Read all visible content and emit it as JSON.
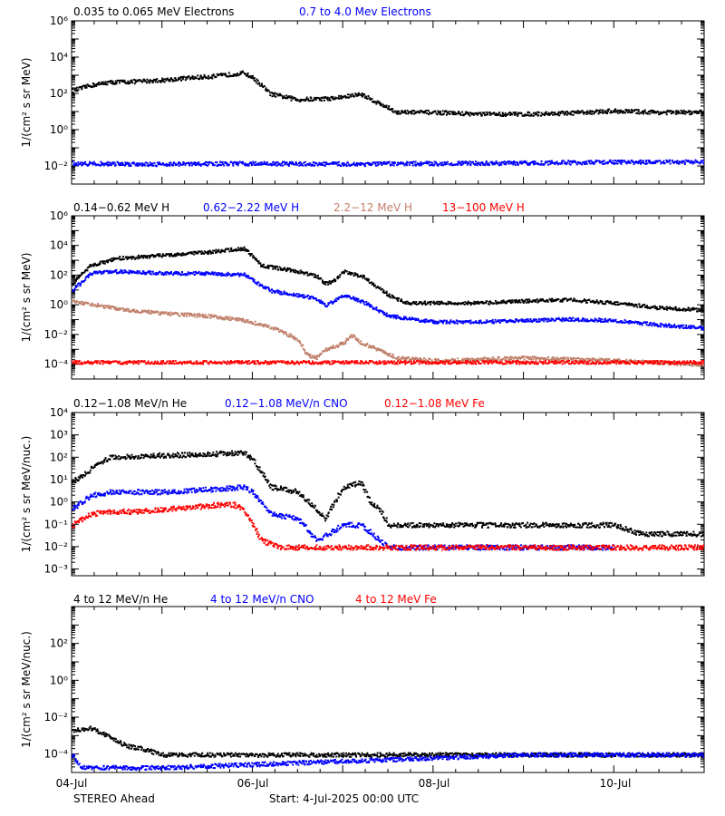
{
  "figure": {
    "spacecraft": "STEREO Ahead",
    "start_label": "Start:  4-Jul-2025 00:00 UTC"
  },
  "colors": {
    "axis": "#000000",
    "black": "#000000",
    "blue": "#0000ff",
    "tan": "#c0806a",
    "red": "#ff0000"
  },
  "x_axis": {
    "range_days": [
      0,
      7
    ],
    "ticks": [
      {
        "day": 0,
        "label": "04-Jul"
      },
      {
        "day": 2,
        "label": "06-Jul"
      },
      {
        "day": 4,
        "label": "08-Jul"
      },
      {
        "day": 6,
        "label": "10-Jul"
      }
    ]
  },
  "chart_data": [
    {
      "type": "scatter",
      "log_y": true,
      "ylabel": "1/(cm² s sr MeV)",
      "ylim": [
        0.001,
        1000000
      ],
      "yticks": [
        {
          "v": 0.01,
          "label": "10⁻²"
        },
        {
          "v": 1,
          "label": "10⁰"
        },
        {
          "v": 100,
          "label": "10²"
        },
        {
          "v": 10000,
          "label": "10⁴"
        },
        {
          "v": 1000000,
          "label": "10⁶"
        }
      ],
      "series": [
        {
          "name": "0.035 to 0.065 MeV Electrons",
          "color": "#000000",
          "points": [
            [
              0.0,
              150
            ],
            [
              0.2,
              300
            ],
            [
              0.4,
              450
            ],
            [
              0.7,
              500
            ],
            [
              1.0,
              600
            ],
            [
              1.3,
              800
            ],
            [
              1.6,
              1000
            ],
            [
              1.9,
              1500
            ],
            [
              2.0,
              800
            ],
            [
              2.2,
              100
            ],
            [
              2.5,
              50
            ],
            [
              2.9,
              60
            ],
            [
              3.2,
              100
            ],
            [
              3.4,
              30
            ],
            [
              3.6,
              10
            ],
            [
              4.0,
              10
            ],
            [
              4.5,
              8
            ],
            [
              5.0,
              8
            ],
            [
              5.5,
              9
            ],
            [
              6.0,
              12
            ],
            [
              6.5,
              10
            ],
            [
              7.0,
              10
            ]
          ]
        },
        {
          "name": "0.7 to 4.0 Mev Electrons",
          "color": "#0000ff",
          "points": [
            [
              0.0,
              0.015
            ],
            [
              1.0,
              0.014
            ],
            [
              2.0,
              0.015
            ],
            [
              3.0,
              0.014
            ],
            [
              4.0,
              0.015
            ],
            [
              5.0,
              0.016
            ],
            [
              6.0,
              0.018
            ],
            [
              7.0,
              0.018
            ]
          ]
        }
      ]
    },
    {
      "type": "scatter",
      "log_y": true,
      "ylabel": "1/(cm² s sr MeV)",
      "ylim": [
        1e-05,
        1000000
      ],
      "yticks": [
        {
          "v": 0.0001,
          "label": "10⁻⁴"
        },
        {
          "v": 0.01,
          "label": "10⁻²"
        },
        {
          "v": 1,
          "label": "10⁰"
        },
        {
          "v": 100,
          "label": "10²"
        },
        {
          "v": 10000,
          "label": "10⁴"
        },
        {
          "v": 1000000,
          "label": "10⁶"
        }
      ],
      "series": [
        {
          "name": "0.14−0.62 MeV H",
          "color": "#000000",
          "points": [
            [
              0.0,
              30
            ],
            [
              0.2,
              500
            ],
            [
              0.5,
              1500
            ],
            [
              1.0,
              2500
            ],
            [
              1.5,
              4000
            ],
            [
              1.9,
              7000
            ],
            [
              2.0,
              2000
            ],
            [
              2.1,
              500
            ],
            [
              2.5,
              200
            ],
            [
              2.7,
              100
            ],
            [
              2.8,
              30
            ],
            [
              2.9,
              50
            ],
            [
              3.0,
              200
            ],
            [
              3.2,
              100
            ],
            [
              3.3,
              40
            ],
            [
              3.5,
              5
            ],
            [
              3.7,
              1.5
            ],
            [
              4.0,
              1.5
            ],
            [
              4.5,
              1.5
            ],
            [
              5.0,
              2
            ],
            [
              5.5,
              2.5
            ],
            [
              6.0,
              1.5
            ],
            [
              6.5,
              0.7
            ],
            [
              7.0,
              0.5
            ]
          ]
        },
        {
          "name": "0.62−2.22 MeV H",
          "color": "#0000ff",
          "points": [
            [
              0.0,
              10
            ],
            [
              0.2,
              150
            ],
            [
              0.5,
              200
            ],
            [
              1.0,
              150
            ],
            [
              1.5,
              150
            ],
            [
              1.9,
              120
            ],
            [
              2.0,
              50
            ],
            [
              2.2,
              10
            ],
            [
              2.5,
              5
            ],
            [
              2.7,
              3
            ],
            [
              2.8,
              1
            ],
            [
              2.9,
              2
            ],
            [
              3.0,
              5
            ],
            [
              3.2,
              2
            ],
            [
              3.3,
              1
            ],
            [
              3.5,
              0.2
            ],
            [
              4.0,
              0.08
            ],
            [
              4.5,
              0.08
            ],
            [
              5.0,
              0.1
            ],
            [
              5.5,
              0.12
            ],
            [
              6.0,
              0.1
            ],
            [
              6.5,
              0.05
            ],
            [
              7.0,
              0.03
            ]
          ]
        },
        {
          "name": "2.2−12 MeV H",
          "color": "#c0806a",
          "points": [
            [
              0.0,
              2
            ],
            [
              0.3,
              1
            ],
            [
              0.6,
              0.5
            ],
            [
              1.0,
              0.3
            ],
            [
              1.5,
              0.2
            ],
            [
              1.9,
              0.1
            ],
            [
              2.1,
              0.05
            ],
            [
              2.3,
              0.02
            ],
            [
              2.5,
              0.005
            ],
            [
              2.6,
              0.0005
            ],
            [
              2.7,
              0.0003
            ],
            [
              2.8,
              0.001
            ],
            [
              3.0,
              0.003
            ],
            [
              3.1,
              0.01
            ],
            [
              3.2,
              0.003
            ],
            [
              3.4,
              0.001
            ],
            [
              3.6,
              0.0003
            ],
            [
              4.0,
              0.0002
            ],
            [
              5.0,
              0.0003
            ],
            [
              6.0,
              0.0002
            ],
            [
              7.0,
              0.0001
            ]
          ]
        },
        {
          "name": "13−100 MeV H",
          "color": "#ff0000",
          "points": [
            [
              0.0,
              0.00015
            ],
            [
              1.0,
              0.00015
            ],
            [
              2.0,
              0.00015
            ],
            [
              3.0,
              0.00015
            ],
            [
              4.0,
              0.00015
            ],
            [
              5.0,
              0.00015
            ],
            [
              6.0,
              0.00015
            ],
            [
              7.0,
              0.00015
            ]
          ]
        }
      ]
    },
    {
      "type": "scatter",
      "log_y": true,
      "ylabel": "1/(cm² s sr MeV/nuc.)",
      "ylim": [
        0.0005,
        10000
      ],
      "yticks": [
        {
          "v": 0.001,
          "label": "10⁻³"
        },
        {
          "v": 0.01,
          "label": "10⁻²"
        },
        {
          "v": 0.1,
          "label": "10⁻¹"
        },
        {
          "v": 1,
          "label": "10⁰"
        },
        {
          "v": 10,
          "label": "10¹"
        },
        {
          "v": 100,
          "label": "10²"
        },
        {
          "v": 1000,
          "label": "10³"
        },
        {
          "v": 10000,
          "label": "10⁴"
        }
      ],
      "series": [
        {
          "name": "0.12−1.08 MeV/n He",
          "color": "#000000",
          "points": [
            [
              0.0,
              8
            ],
            [
              0.2,
              30
            ],
            [
              0.4,
              100
            ],
            [
              0.7,
              120
            ],
            [
              1.0,
              130
            ],
            [
              1.3,
              140
            ],
            [
              1.6,
              150
            ],
            [
              1.9,
              180
            ],
            [
              2.0,
              80
            ],
            [
              2.2,
              5
            ],
            [
              2.5,
              3
            ],
            [
              2.7,
              0.5
            ],
            [
              2.8,
              0.2
            ],
            [
              2.9,
              1
            ],
            [
              3.0,
              5
            ],
            [
              3.2,
              8
            ],
            [
              3.3,
              1
            ],
            [
              3.4,
              0.5
            ],
            [
              3.5,
              0.1
            ],
            [
              4.0,
              0.1
            ],
            [
              5.0,
              0.1
            ],
            [
              6.0,
              0.1
            ],
            [
              6.3,
              0.04
            ],
            [
              7.0,
              0.04
            ]
          ]
        },
        {
          "name": "0.12−1.08 MeV/n CNO",
          "color": "#0000ff",
          "points": [
            [
              0.0,
              0.5
            ],
            [
              0.2,
              2
            ],
            [
              0.4,
              3
            ],
            [
              0.7,
              3
            ],
            [
              1.0,
              3
            ],
            [
              1.3,
              3.5
            ],
            [
              1.6,
              4
            ],
            [
              1.9,
              5
            ],
            [
              2.0,
              3
            ],
            [
              2.2,
              0.3
            ],
            [
              2.5,
              0.2
            ],
            [
              2.7,
              0.02
            ],
            [
              3.0,
              0.1
            ],
            [
              3.2,
              0.1
            ],
            [
              3.5,
              0.01
            ],
            [
              4.0,
              0.01
            ],
            [
              5.0,
              0.01
            ],
            [
              6.0,
              0.01
            ]
          ]
        },
        {
          "name": "0.12−1.08 MeV Fe",
          "color": "#ff0000",
          "points": [
            [
              0.0,
              0.1
            ],
            [
              0.2,
              0.3
            ],
            [
              0.4,
              0.4
            ],
            [
              0.7,
              0.4
            ],
            [
              1.0,
              0.5
            ],
            [
              1.3,
              0.6
            ],
            [
              1.6,
              0.8
            ],
            [
              1.8,
              0.8
            ],
            [
              1.9,
              0.5
            ],
            [
              2.0,
              0.1
            ],
            [
              2.1,
              0.02
            ],
            [
              2.3,
              0.01
            ],
            [
              3.0,
              0.01
            ],
            [
              4.0,
              0.01
            ],
            [
              5.0,
              0.01
            ],
            [
              6.0,
              0.01
            ],
            [
              7.0,
              0.01
            ]
          ]
        }
      ]
    },
    {
      "type": "scatter",
      "log_y": true,
      "ylabel": "1/(cm² s sr MeV/nuc.)",
      "ylim": [
        1e-05,
        10000
      ],
      "yticks": [
        {
          "v": 0.0001,
          "label": "10⁻⁴"
        },
        {
          "v": 0.01,
          "label": "10⁻²"
        },
        {
          "v": 1,
          "label": "10⁰"
        },
        {
          "v": 100,
          "label": "10²"
        }
      ],
      "series": [
        {
          "name": "4 to 12 MeV/n He",
          "color": "#000000",
          "points": [
            [
              0.0,
              0.002
            ],
            [
              0.2,
              0.003
            ],
            [
              0.4,
              0.001
            ],
            [
              0.6,
              0.0003
            ],
            [
              0.8,
              0.0002
            ],
            [
              1.0,
              0.0001
            ],
            [
              1.5,
              0.0001
            ],
            [
              2.0,
              0.0001
            ],
            [
              3.0,
              0.0001
            ],
            [
              4.0,
              0.0001
            ],
            [
              5.0,
              0.0001
            ],
            [
              6.0,
              0.0001
            ],
            [
              7.0,
              0.0001
            ]
          ]
        },
        {
          "name": "4 to 12 MeV/n CNO",
          "color": "#0000ff",
          "points": [
            [
              0.0,
              0.0001
            ],
            [
              0.1,
              2e-05
            ],
            [
              1.0,
              2e-05
            ],
            [
              5.0,
              0.0001
            ],
            [
              6.0,
              0.0001
            ],
            [
              7.0,
              0.0001
            ]
          ]
        },
        {
          "name": "4 to 12 MeV Fe",
          "color": "#ff0000",
          "points": []
        }
      ]
    }
  ]
}
